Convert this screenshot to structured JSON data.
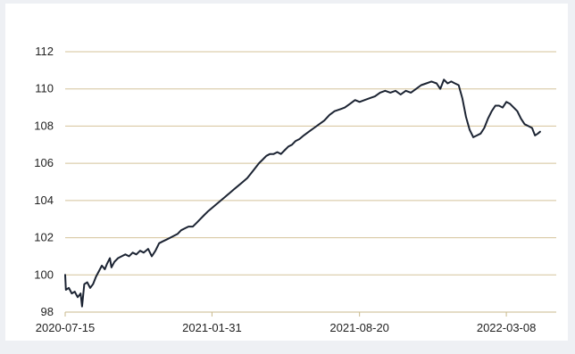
{
  "chart_data": {
    "type": "line",
    "title": "",
    "xlabel": "",
    "ylabel": "",
    "ylim": [
      98,
      112
    ],
    "yticks": [
      98,
      100,
      102,
      104,
      106,
      108,
      110,
      112
    ],
    "xlim": [
      "2020-07-15",
      "2022-05-15"
    ],
    "xticks": [
      "2020-07-15",
      "2021-01-31",
      "2021-08-20",
      "2022-03-08"
    ],
    "grid": "horizontal",
    "legend": "none",
    "colors": {
      "line": "#1c2433",
      "grid": "#d4c39a",
      "axis": "#c9b98c"
    },
    "series": [
      {
        "points": [
          [
            "2020-07-15",
            100.0
          ],
          [
            "2020-07-16",
            99.2
          ],
          [
            "2020-07-20",
            99.3
          ],
          [
            "2020-07-24",
            99.0
          ],
          [
            "2020-07-28",
            99.1
          ],
          [
            "2020-08-01",
            98.8
          ],
          [
            "2020-08-05",
            99.0
          ],
          [
            "2020-08-07",
            98.3
          ],
          [
            "2020-08-10",
            99.5
          ],
          [
            "2020-08-14",
            99.6
          ],
          [
            "2020-08-18",
            99.3
          ],
          [
            "2020-08-22",
            99.5
          ],
          [
            "2020-08-26",
            99.9
          ],
          [
            "2020-08-30",
            100.2
          ],
          [
            "2020-09-03",
            100.5
          ],
          [
            "2020-09-07",
            100.3
          ],
          [
            "2020-09-10",
            100.6
          ],
          [
            "2020-09-14",
            100.9
          ],
          [
            "2020-09-16",
            100.4
          ],
          [
            "2020-09-20",
            100.7
          ],
          [
            "2020-09-25",
            100.9
          ],
          [
            "2020-09-30",
            101.0
          ],
          [
            "2020-10-05",
            101.1
          ],
          [
            "2020-10-10",
            101.0
          ],
          [
            "2020-10-15",
            101.2
          ],
          [
            "2020-10-20",
            101.1
          ],
          [
            "2020-10-25",
            101.3
          ],
          [
            "2020-10-30",
            101.2
          ],
          [
            "2020-11-05",
            101.4
          ],
          [
            "2020-11-10",
            101.0
          ],
          [
            "2020-11-15",
            101.3
          ],
          [
            "2020-11-20",
            101.7
          ],
          [
            "2020-11-25",
            101.8
          ],
          [
            "2020-11-30",
            101.9
          ],
          [
            "2020-12-05",
            102.0
          ],
          [
            "2020-12-10",
            102.1
          ],
          [
            "2020-12-15",
            102.2
          ],
          [
            "2020-12-20",
            102.4
          ],
          [
            "2020-12-25",
            102.5
          ],
          [
            "2020-12-30",
            102.6
          ],
          [
            "2021-01-05",
            102.6
          ],
          [
            "2021-01-10",
            102.8
          ],
          [
            "2021-01-15",
            103.0
          ],
          [
            "2021-01-20",
            103.2
          ],
          [
            "2021-01-25",
            103.4
          ],
          [
            "2021-01-31",
            103.6
          ],
          [
            "2021-02-06",
            103.8
          ],
          [
            "2021-02-12",
            104.0
          ],
          [
            "2021-02-18",
            104.2
          ],
          [
            "2021-02-24",
            104.4
          ],
          [
            "2021-03-02",
            104.6
          ],
          [
            "2021-03-08",
            104.8
          ],
          [
            "2021-03-14",
            105.0
          ],
          [
            "2021-03-20",
            105.2
          ],
          [
            "2021-03-26",
            105.5
          ],
          [
            "2021-04-01",
            105.8
          ],
          [
            "2021-04-05",
            106.0
          ],
          [
            "2021-04-10",
            106.2
          ],
          [
            "2021-04-15",
            106.4
          ],
          [
            "2021-04-20",
            106.5
          ],
          [
            "2021-04-25",
            106.5
          ],
          [
            "2021-04-30",
            106.6
          ],
          [
            "2021-05-05",
            106.5
          ],
          [
            "2021-05-10",
            106.7
          ],
          [
            "2021-05-15",
            106.9
          ],
          [
            "2021-05-20",
            107.0
          ],
          [
            "2021-05-25",
            107.2
          ],
          [
            "2021-05-30",
            107.3
          ],
          [
            "2021-06-05",
            107.5
          ],
          [
            "2021-06-12",
            107.7
          ],
          [
            "2021-06-19",
            107.9
          ],
          [
            "2021-06-26",
            108.1
          ],
          [
            "2021-07-03",
            108.3
          ],
          [
            "2021-07-10",
            108.6
          ],
          [
            "2021-07-17",
            108.8
          ],
          [
            "2021-07-24",
            108.9
          ],
          [
            "2021-07-31",
            109.0
          ],
          [
            "2021-08-07",
            109.2
          ],
          [
            "2021-08-14",
            109.4
          ],
          [
            "2021-08-20",
            109.3
          ],
          [
            "2021-08-27",
            109.4
          ],
          [
            "2021-09-03",
            109.5
          ],
          [
            "2021-09-10",
            109.6
          ],
          [
            "2021-09-17",
            109.8
          ],
          [
            "2021-09-24",
            109.9
          ],
          [
            "2021-10-01",
            109.8
          ],
          [
            "2021-10-08",
            109.9
          ],
          [
            "2021-10-15",
            109.7
          ],
          [
            "2021-10-22",
            109.9
          ],
          [
            "2021-10-29",
            109.8
          ],
          [
            "2021-11-05",
            110.0
          ],
          [
            "2021-11-12",
            110.2
          ],
          [
            "2021-11-19",
            110.3
          ],
          [
            "2021-11-26",
            110.4
          ],
          [
            "2021-12-03",
            110.3
          ],
          [
            "2021-12-08",
            110.0
          ],
          [
            "2021-12-13",
            110.5
          ],
          [
            "2021-12-18",
            110.3
          ],
          [
            "2021-12-23",
            110.4
          ],
          [
            "2021-12-28",
            110.3
          ],
          [
            "2022-01-02",
            110.2
          ],
          [
            "2022-01-07",
            109.5
          ],
          [
            "2022-01-12",
            108.5
          ],
          [
            "2022-01-17",
            107.8
          ],
          [
            "2022-01-22",
            107.4
          ],
          [
            "2022-01-27",
            107.5
          ],
          [
            "2022-02-01",
            107.6
          ],
          [
            "2022-02-06",
            107.9
          ],
          [
            "2022-02-11",
            108.4
          ],
          [
            "2022-02-16",
            108.8
          ],
          [
            "2022-02-21",
            109.1
          ],
          [
            "2022-02-26",
            109.1
          ],
          [
            "2022-03-03",
            109.0
          ],
          [
            "2022-03-08",
            109.3
          ],
          [
            "2022-03-13",
            109.2
          ],
          [
            "2022-03-18",
            109.0
          ],
          [
            "2022-03-23",
            108.8
          ],
          [
            "2022-03-28",
            108.4
          ],
          [
            "2022-04-02",
            108.1
          ],
          [
            "2022-04-07",
            108.0
          ],
          [
            "2022-04-12",
            107.9
          ],
          [
            "2022-04-16",
            107.5
          ],
          [
            "2022-04-20",
            107.6
          ],
          [
            "2022-04-23",
            107.7
          ]
        ]
      }
    ]
  }
}
